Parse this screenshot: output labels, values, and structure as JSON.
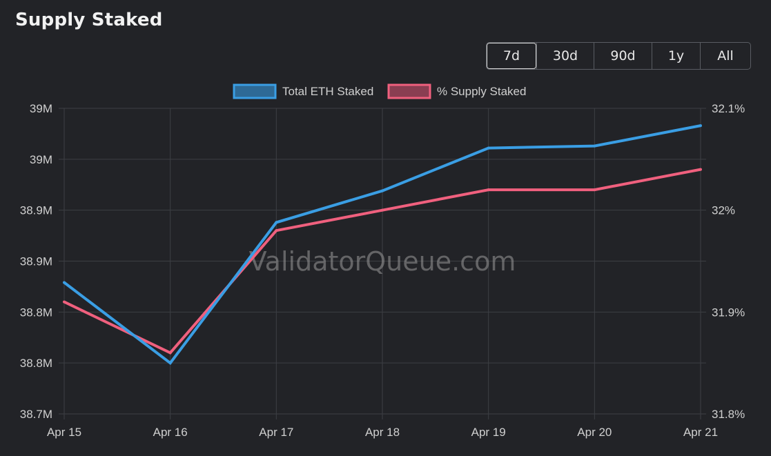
{
  "header": {
    "title": "Supply Staked"
  },
  "range_selector": {
    "options": [
      "7d",
      "30d",
      "90d",
      "1y",
      "All"
    ],
    "selected": "7d"
  },
  "watermark": "ValidatorQueue.com",
  "colors": {
    "background": "#222327",
    "grid": "#3d3f44",
    "total_eth": "#3a9ee4",
    "supply_pct": "#f0607e"
  },
  "chart_data": {
    "type": "line",
    "title": "",
    "x": [
      "Apr 15",
      "Apr 16",
      "Apr 17",
      "Apr 18",
      "Apr 19",
      "Apr 20",
      "Apr 21"
    ],
    "legend": {
      "placement": "top-center"
    },
    "grid": true,
    "axes": {
      "left": {
        "ylim": [
          38700000,
          39000000
        ],
        "tick_values": [
          38700000,
          38750000,
          38800000,
          38850000,
          38900000,
          38950000,
          39000000
        ],
        "tick_labels": [
          "38.7M",
          "38.8M",
          "38.8M",
          "38.9M",
          "38.9M",
          "39M",
          "39M"
        ]
      },
      "right": {
        "ylim": [
          31.8,
          32.1
        ],
        "tick_values": [
          31.8,
          31.9,
          32.0,
          32.1
        ],
        "tick_labels": [
          "31.8%",
          "31.9%",
          "32%",
          "32.1%"
        ]
      }
    },
    "series": [
      {
        "name": "Total ETH Staked",
        "axis": "left",
        "values": [
          38829000,
          38750000,
          38888000,
          38919000,
          38961000,
          38963000,
          38983000
        ]
      },
      {
        "name": "% Supply Staked",
        "axis": "right",
        "values": [
          31.91,
          31.86,
          31.98,
          32.0,
          32.02,
          32.02,
          32.04
        ]
      }
    ]
  }
}
